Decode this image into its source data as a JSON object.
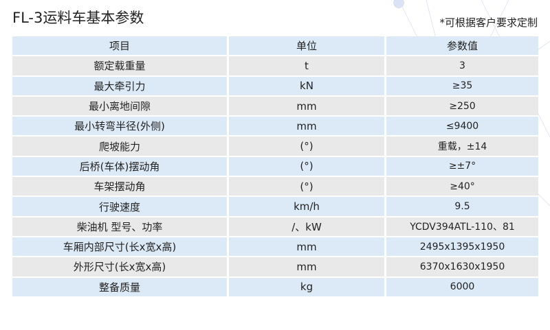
{
  "title": "FL-3运料车基本参数",
  "note": "*可根据客户要求定制",
  "colors": {
    "header_bg": "#dce9f6",
    "row_blue": "#dce9f6",
    "row_gray": "#e9e9e9"
  },
  "table": {
    "headers": [
      "项目",
      "单位",
      "参数值"
    ],
    "rows": [
      [
        "额定载重量",
        "t",
        "3"
      ],
      [
        "最大牵引力",
        "kN",
        "≥35"
      ],
      [
        "最小离地间隙",
        "mm",
        "≥250"
      ],
      [
        "最小转弯半径(外侧)",
        "mm",
        "≤9400"
      ],
      [
        "爬坡能力",
        "(°)",
        "重载，±14"
      ],
      [
        "后桥(车体)摆动角",
        "(°)",
        "≥±7°"
      ],
      [
        "车架摆动角",
        "(°)",
        "≥40°"
      ],
      [
        "行驶速度",
        "km/h",
        "9.5"
      ],
      [
        "柴油机 型号、功率",
        "/、kW",
        "YCDV394ATL-110、81"
      ],
      [
        "车厢内部尺寸(长x宽x高)",
        "mm",
        "2495x1395x1950"
      ],
      [
        "外形尺寸(长x宽x高)",
        "mm",
        "6370x1630x1950"
      ],
      [
        "整备质量",
        "kg",
        "6000"
      ]
    ]
  }
}
